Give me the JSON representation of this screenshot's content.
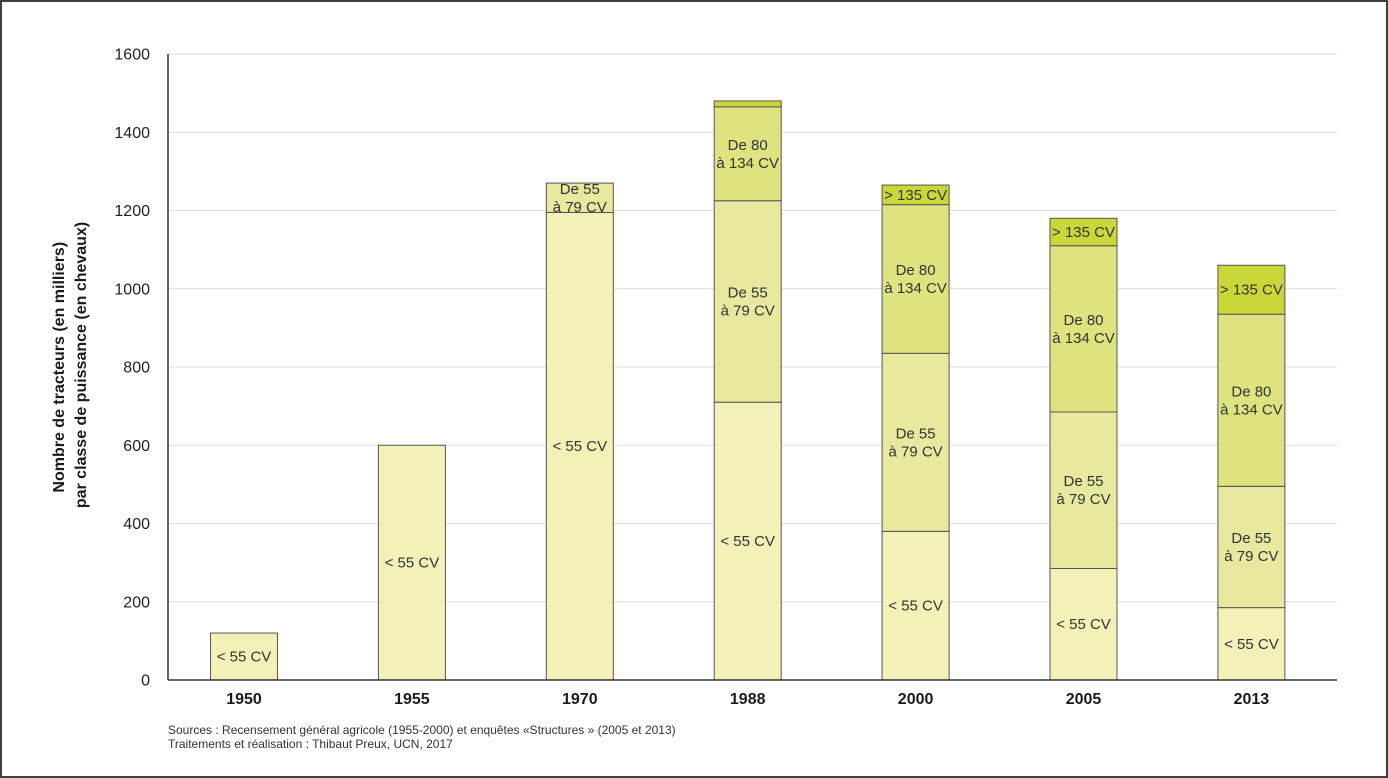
{
  "chart_data": {
    "type": "bar",
    "stacked": true,
    "categories": [
      "1950",
      "1955",
      "1970",
      "1988",
      "2000",
      "2005",
      "2013"
    ],
    "series": [
      {
        "label": [
          "< 55 CV"
        ],
        "color": "#f2f2b8",
        "values": [
          120,
          600,
          1195,
          710,
          380,
          285,
          185
        ]
      },
      {
        "label": [
          "De 55",
          "à 79 CV"
        ],
        "color": "#e6e99e",
        "values": [
          null,
          null,
          75,
          515,
          455,
          400,
          310
        ]
      },
      {
        "label": [
          "De 80",
          "à 134 CV"
        ],
        "color": "#dde37e",
        "values": [
          null,
          null,
          null,
          240,
          380,
          425,
          440
        ]
      },
      {
        "label": [
          "> 135 CV"
        ],
        "color": "#c9d838",
        "values": [
          null,
          null,
          null,
          15,
          50,
          70,
          125
        ]
      }
    ],
    "ylabel": [
      "Nombre de tracteurs (en milliers)",
      "par classe de puissance (en chevaux)"
    ],
    "ylim": [
      0,
      1600
    ],
    "yticks": [
      0,
      200,
      400,
      600,
      800,
      1000,
      1200,
      1400,
      1600
    ],
    "grid": true,
    "legend": "none"
  },
  "footer": {
    "sources": "Sources : Recensement général agricole (1955-2000) et enquêtes «Structures » (2005 et 2013)",
    "credits": "Traitements et réalisation : Thibaut Preux, UCN, 2017"
  },
  "colors": {
    "axis": "#333333",
    "grid": "#dcdcdc",
    "frame": "#404040",
    "bar_outline": "#555555"
  }
}
